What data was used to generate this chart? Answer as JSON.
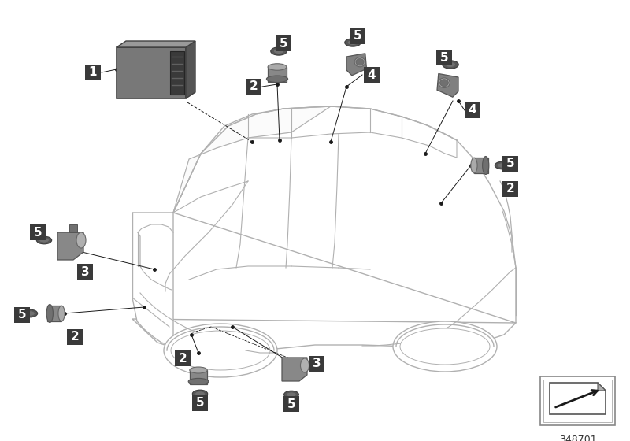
{
  "background_color": "#ffffff",
  "car_line_color": "#b0b0b0",
  "car_fill_color": "#ffffff",
  "label_bg": "#3a3a3a",
  "label_text": "#ffffff",
  "line_color": "#1a1a1a",
  "part_number": "348701",
  "ecu_front": "#808080",
  "ecu_top": "#a0a0a0",
  "ecu_right": "#606060",
  "ecu_conn": "#404040",
  "sensor_body": "#909090",
  "sensor_face": "#b0b0b0",
  "sensor_dark": "#505050",
  "sensor_ring": "#404040"
}
